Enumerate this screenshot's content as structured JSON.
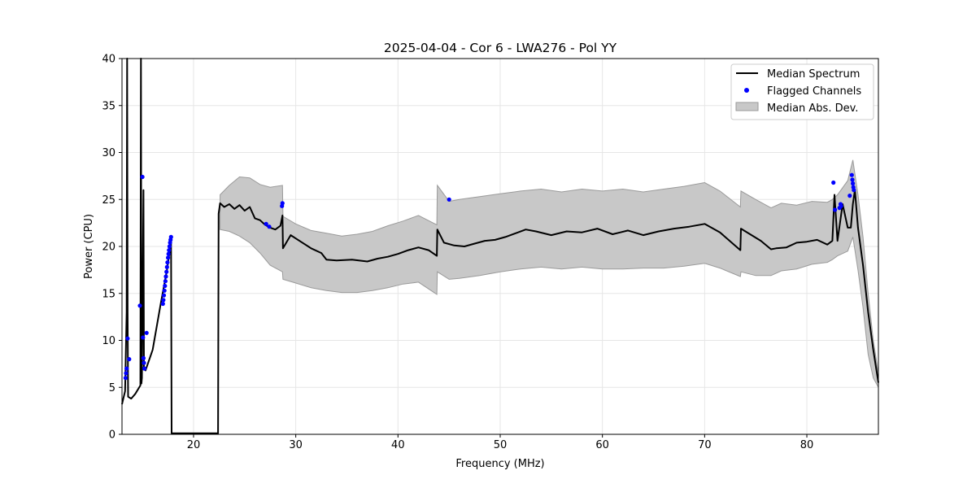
{
  "chart_data": {
    "type": "line",
    "title": "2025-04-04 - Cor 6 - LWA276 - Pol YY",
    "xlabel": "Frequency (MHz)",
    "ylabel": "Power (CPU)",
    "xlim": [
      13,
      87
    ],
    "ylim": [
      0,
      40
    ],
    "xticks": [
      20,
      30,
      40,
      50,
      60,
      70,
      80
    ],
    "yticks": [
      0,
      5,
      10,
      15,
      20,
      25,
      30,
      35,
      40
    ],
    "grid": true,
    "legend": {
      "position": "top-right",
      "entries": [
        {
          "label": "Median Spectrum",
          "kind": "line"
        },
        {
          "label": "Flagged Channels",
          "kind": "scatter"
        },
        {
          "label": "Median Abs. Dev.",
          "kind": "area"
        }
      ]
    },
    "colors": {
      "median": "#000000",
      "flagged": "#0000ff",
      "mad_fill": "#c8c8c8",
      "mad_edge": "#9a9a9a",
      "grid": "#e6e6e6"
    },
    "series": [
      {
        "name": "Median Spectrum",
        "x": [
          13.0,
          13.3,
          13.45,
          13.5,
          13.55,
          13.6,
          13.9,
          14.3,
          14.8,
          14.85,
          14.9,
          14.95,
          15.1,
          15.15,
          15.2,
          15.3,
          16.0,
          16.8,
          17.4,
          17.8,
          17.85,
          17.9,
          22.4,
          22.45,
          22.6,
          23.0,
          23.5,
          24.0,
          24.5,
          25.0,
          25.5,
          26.0,
          26.5,
          27.0,
          27.5,
          28.0,
          28.5,
          28.7,
          28.75,
          29.5,
          30.5,
          31.5,
          32.5,
          33.0,
          34.0,
          35.5,
          37.0,
          38.0,
          39.0,
          40.0,
          41.0,
          42.0,
          43.0,
          43.8,
          43.85,
          44.5,
          45.5,
          46.5,
          47.5,
          48.5,
          49.5,
          50.5,
          51.5,
          52.5,
          53.5,
          55.0,
          56.5,
          58.0,
          59.5,
          61.0,
          62.5,
          64.0,
          65.5,
          67.0,
          68.5,
          70.0,
          71.5,
          73.5,
          73.55,
          75.5,
          76.5,
          77.0,
          78.0,
          79.0,
          80.0,
          81.0,
          82.0,
          82.5,
          82.7,
          83.0,
          83.5,
          84.0,
          84.3,
          84.5,
          84.7,
          85.0,
          85.5,
          86.0,
          86.5,
          87.0
        ],
        "y": [
          3.2,
          4.6,
          13.0,
          40.0,
          13.0,
          4.0,
          3.8,
          4.3,
          5.2,
          40.0,
          5.4,
          6.0,
          26.0,
          7.0,
          7.0,
          6.8,
          9.0,
          14.0,
          17.5,
          20.5,
          0.1,
          0.1,
          0.1,
          23.5,
          24.6,
          24.2,
          24.5,
          24.0,
          24.4,
          23.8,
          24.2,
          23.0,
          22.8,
          22.3,
          22.0,
          21.8,
          22.2,
          23.3,
          19.8,
          21.2,
          20.5,
          19.8,
          19.3,
          18.6,
          18.5,
          18.6,
          18.4,
          18.7,
          18.9,
          19.2,
          19.6,
          19.9,
          19.6,
          19.0,
          21.8,
          20.4,
          20.1,
          20.0,
          20.3,
          20.6,
          20.7,
          21.0,
          21.4,
          21.8,
          21.6,
          21.2,
          21.6,
          21.5,
          21.9,
          21.3,
          21.7,
          21.2,
          21.6,
          21.9,
          22.1,
          22.4,
          21.5,
          19.6,
          21.9,
          20.6,
          19.7,
          19.8,
          19.9,
          20.4,
          20.5,
          20.7,
          20.2,
          20.6,
          25.5,
          20.6,
          24.5,
          22.0,
          22.0,
          24.5,
          26.0,
          22.0,
          18.0,
          13.0,
          9.0,
          5.5
        ]
      },
      {
        "name": "Median Abs. Dev.",
        "x": [
          22.6,
          23.5,
          24.5,
          25.5,
          26.5,
          27.5,
          28.7,
          28.75,
          30.0,
          31.5,
          33.0,
          34.5,
          36.0,
          37.5,
          39.0,
          40.5,
          42.0,
          43.8,
          43.85,
          45.0,
          46.0,
          48.0,
          50.0,
          52.0,
          54.0,
          56.0,
          58.0,
          60.0,
          62.0,
          64.0,
          66.0,
          68.0,
          70.0,
          71.5,
          73.5,
          73.55,
          75.0,
          76.5,
          77.5,
          79.0,
          80.5,
          82.0,
          82.5,
          83.0,
          84.0,
          84.5,
          85.0,
          85.5,
          86.0,
          86.5,
          87.0
        ],
        "upper": [
          25.5,
          26.5,
          27.4,
          27.3,
          26.6,
          26.3,
          26.5,
          23.2,
          22.4,
          21.7,
          21.4,
          21.1,
          21.3,
          21.6,
          22.2,
          22.7,
          23.3,
          22.3,
          26.5,
          24.8,
          25.0,
          25.3,
          25.6,
          25.9,
          26.1,
          25.8,
          26.1,
          25.9,
          26.1,
          25.8,
          26.1,
          26.4,
          26.8,
          25.9,
          24.2,
          25.9,
          25.0,
          24.1,
          24.6,
          24.4,
          24.8,
          24.7,
          25.0,
          25.5,
          27.0,
          29.2,
          25.5,
          21.0,
          15.0,
          10.0,
          6.5
        ],
        "lower": [
          21.8,
          21.6,
          21.1,
          20.4,
          19.3,
          18.0,
          17.3,
          16.5,
          16.1,
          15.6,
          15.3,
          15.1,
          15.1,
          15.3,
          15.6,
          16.0,
          16.2,
          14.9,
          17.3,
          16.5,
          16.6,
          16.9,
          17.3,
          17.6,
          17.8,
          17.6,
          17.8,
          17.6,
          17.6,
          17.7,
          17.7,
          17.9,
          18.2,
          17.7,
          16.8,
          17.3,
          16.9,
          16.9,
          17.4,
          17.6,
          18.1,
          18.3,
          18.6,
          19.0,
          19.5,
          21.0,
          17.5,
          13.5,
          8.5,
          6.0,
          5.0
        ]
      },
      {
        "name": "Flagged Channels",
        "points": [
          {
            "x": 13.35,
            "y": 6.0
          },
          {
            "x": 13.4,
            "y": 6.5
          },
          {
            "x": 13.45,
            "y": 7.0
          },
          {
            "x": 13.55,
            "y": 10.2
          },
          {
            "x": 13.7,
            "y": 8.0
          },
          {
            "x": 14.75,
            "y": 13.7
          },
          {
            "x": 15.0,
            "y": 27.4
          },
          {
            "x": 15.05,
            "y": 10.3
          },
          {
            "x": 15.1,
            "y": 8.1
          },
          {
            "x": 15.15,
            "y": 7.6
          },
          {
            "x": 15.2,
            "y": 7.0
          },
          {
            "x": 15.4,
            "y": 10.8
          },
          {
            "x": 17.0,
            "y": 13.9
          },
          {
            "x": 17.05,
            "y": 14.3
          },
          {
            "x": 17.1,
            "y": 14.8
          },
          {
            "x": 17.15,
            "y": 15.3
          },
          {
            "x": 17.2,
            "y": 15.8
          },
          {
            "x": 17.25,
            "y": 16.3
          },
          {
            "x": 17.3,
            "y": 16.8
          },
          {
            "x": 17.35,
            "y": 17.3
          },
          {
            "x": 17.4,
            "y": 17.8
          },
          {
            "x": 17.45,
            "y": 18.3
          },
          {
            "x": 17.5,
            "y": 18.8
          },
          {
            "x": 17.55,
            "y": 19.2
          },
          {
            "x": 17.6,
            "y": 19.6
          },
          {
            "x": 17.65,
            "y": 20.0
          },
          {
            "x": 17.7,
            "y": 20.4
          },
          {
            "x": 17.75,
            "y": 20.7
          },
          {
            "x": 17.8,
            "y": 21.0
          },
          {
            "x": 27.1,
            "y": 22.4
          },
          {
            "x": 27.4,
            "y": 22.1
          },
          {
            "x": 28.65,
            "y": 24.3
          },
          {
            "x": 28.7,
            "y": 24.6
          },
          {
            "x": 45.0,
            "y": 25.0
          },
          {
            "x": 82.6,
            "y": 26.8
          },
          {
            "x": 82.75,
            "y": 23.9
          },
          {
            "x": 83.2,
            "y": 24.1
          },
          {
            "x": 83.3,
            "y": 24.5
          },
          {
            "x": 83.35,
            "y": 24.3
          },
          {
            "x": 84.2,
            "y": 25.4
          },
          {
            "x": 84.4,
            "y": 27.6
          },
          {
            "x": 84.45,
            "y": 27.1
          },
          {
            "x": 84.5,
            "y": 26.7
          },
          {
            "x": 84.55,
            "y": 26.3
          },
          {
            "x": 84.6,
            "y": 26.0
          }
        ]
      }
    ]
  }
}
